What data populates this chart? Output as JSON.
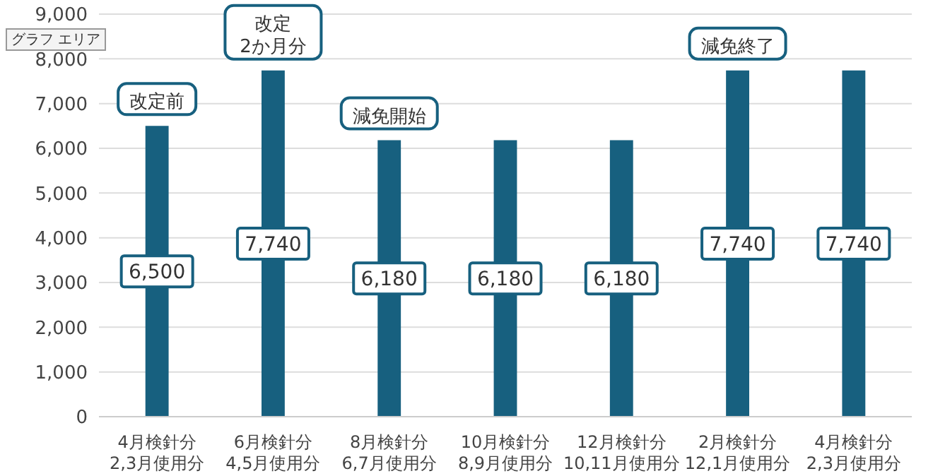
{
  "chart_data": {
    "type": "bar",
    "categories": [
      "4月検針分\n2,3月使用分",
      "6月検針分\n4,5月使用分",
      "8月検針分\n6,7月使用分",
      "10月検針分\n8,9月使用分",
      "12月検針分\n10,11月使用分",
      "2月検針分\n12,1月使用分",
      "4月検針分\n2,3月使用分"
    ],
    "values": [
      6500,
      7740,
      6180,
      6180,
      6180,
      7740,
      7740
    ],
    "value_labels": [
      "6,500",
      "7,740",
      "6,180",
      "6,180",
      "6,180",
      "7,740",
      "7,740"
    ],
    "color": "#17607f",
    "ylim": [
      0,
      9000
    ],
    "yticks": [
      0,
      {
        "value": 1000,
        "label": "1,000"
      },
      {
        "value": 2000,
        "label": "2,000"
      },
      {
        "value": 3000,
        "label": "3,000"
      },
      {
        "value": 4000,
        "label": "4,000"
      },
      {
        "value": 5000,
        "label": "5,000"
      },
      {
        "value": 6000,
        "label": "6,000"
      },
      {
        "value": 7000,
        "label": "7,000"
      },
      {
        "value": 8000,
        "label": "8,000"
      },
      {
        "value": 9000,
        "label": "9,000"
      }
    ],
    "grid": "y",
    "annotations": [
      "グラフ エリア",
      {
        "text": "改定前",
        "x": "4月検針分\n2,3月使用分",
        "y": 6500
      },
      {
        "text": "改定\n2か月分",
        "x": "6月検針分\n4,5月使用分",
        "y": 7740
      },
      {
        "text": "減免開始",
        "x": "8月検針分\n6,7月使用分",
        "y": 6180
      },
      {
        "text": "減免終了",
        "x": "2月検針分\n12,1月使用分",
        "y": 7740
      }
    ]
  }
}
